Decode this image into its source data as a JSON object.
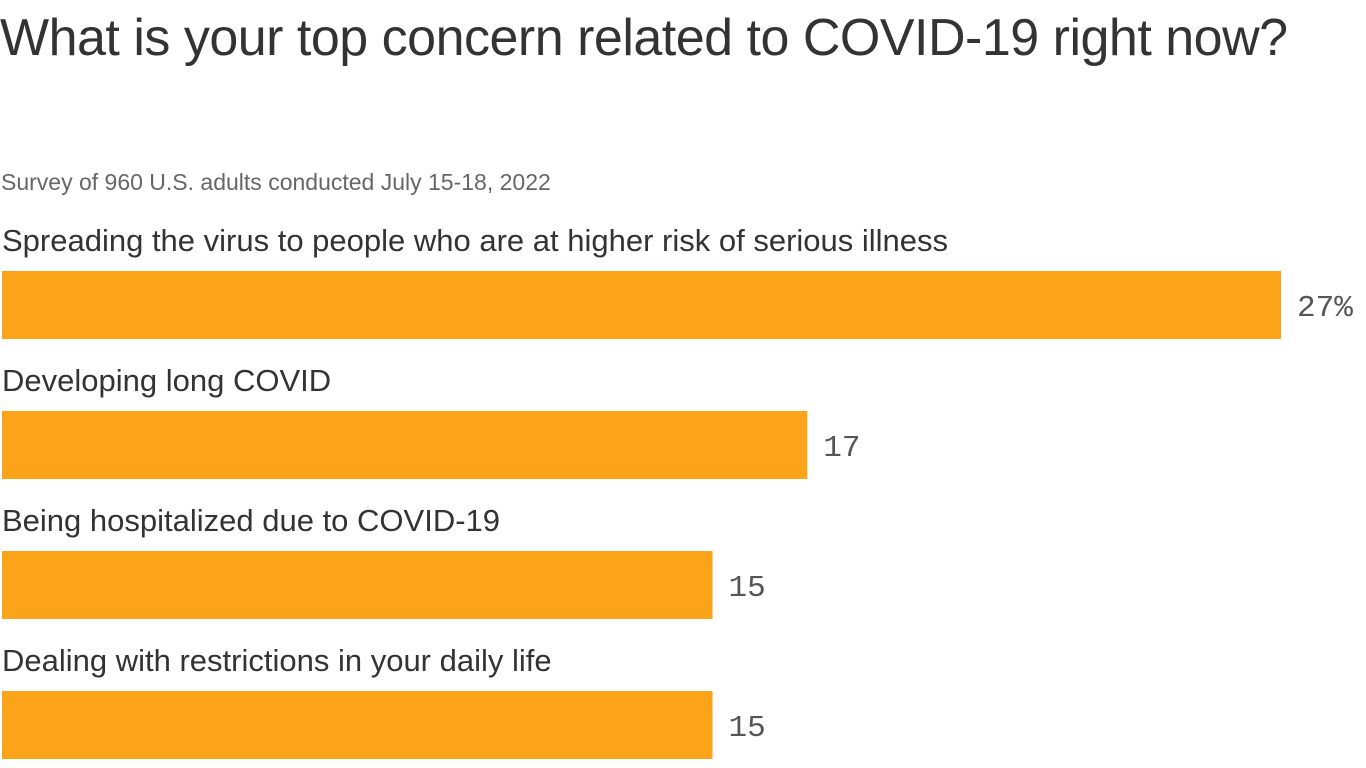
{
  "title": "What is your top concern related to COVID-19 right now?",
  "subtitle": "Survey of 960 U.S. adults conducted July 15-18, 2022",
  "colors": {
    "bar": "#FBA41A",
    "text": "#333333",
    "subtext": "#666666"
  },
  "chart_data": {
    "type": "bar",
    "orientation": "horizontal",
    "categories": [
      "Spreading the virus to people who are at higher risk of serious illness",
      "Developing long COVID",
      "Being hospitalized due to COVID-19",
      "Dealing with restrictions in your daily life"
    ],
    "values": [
      27,
      17,
      15,
      15
    ],
    "value_labels": [
      "27%",
      "17",
      "15",
      "15"
    ],
    "unit": "%",
    "xlim": [
      0,
      27
    ],
    "grid": false,
    "legend": "none"
  }
}
